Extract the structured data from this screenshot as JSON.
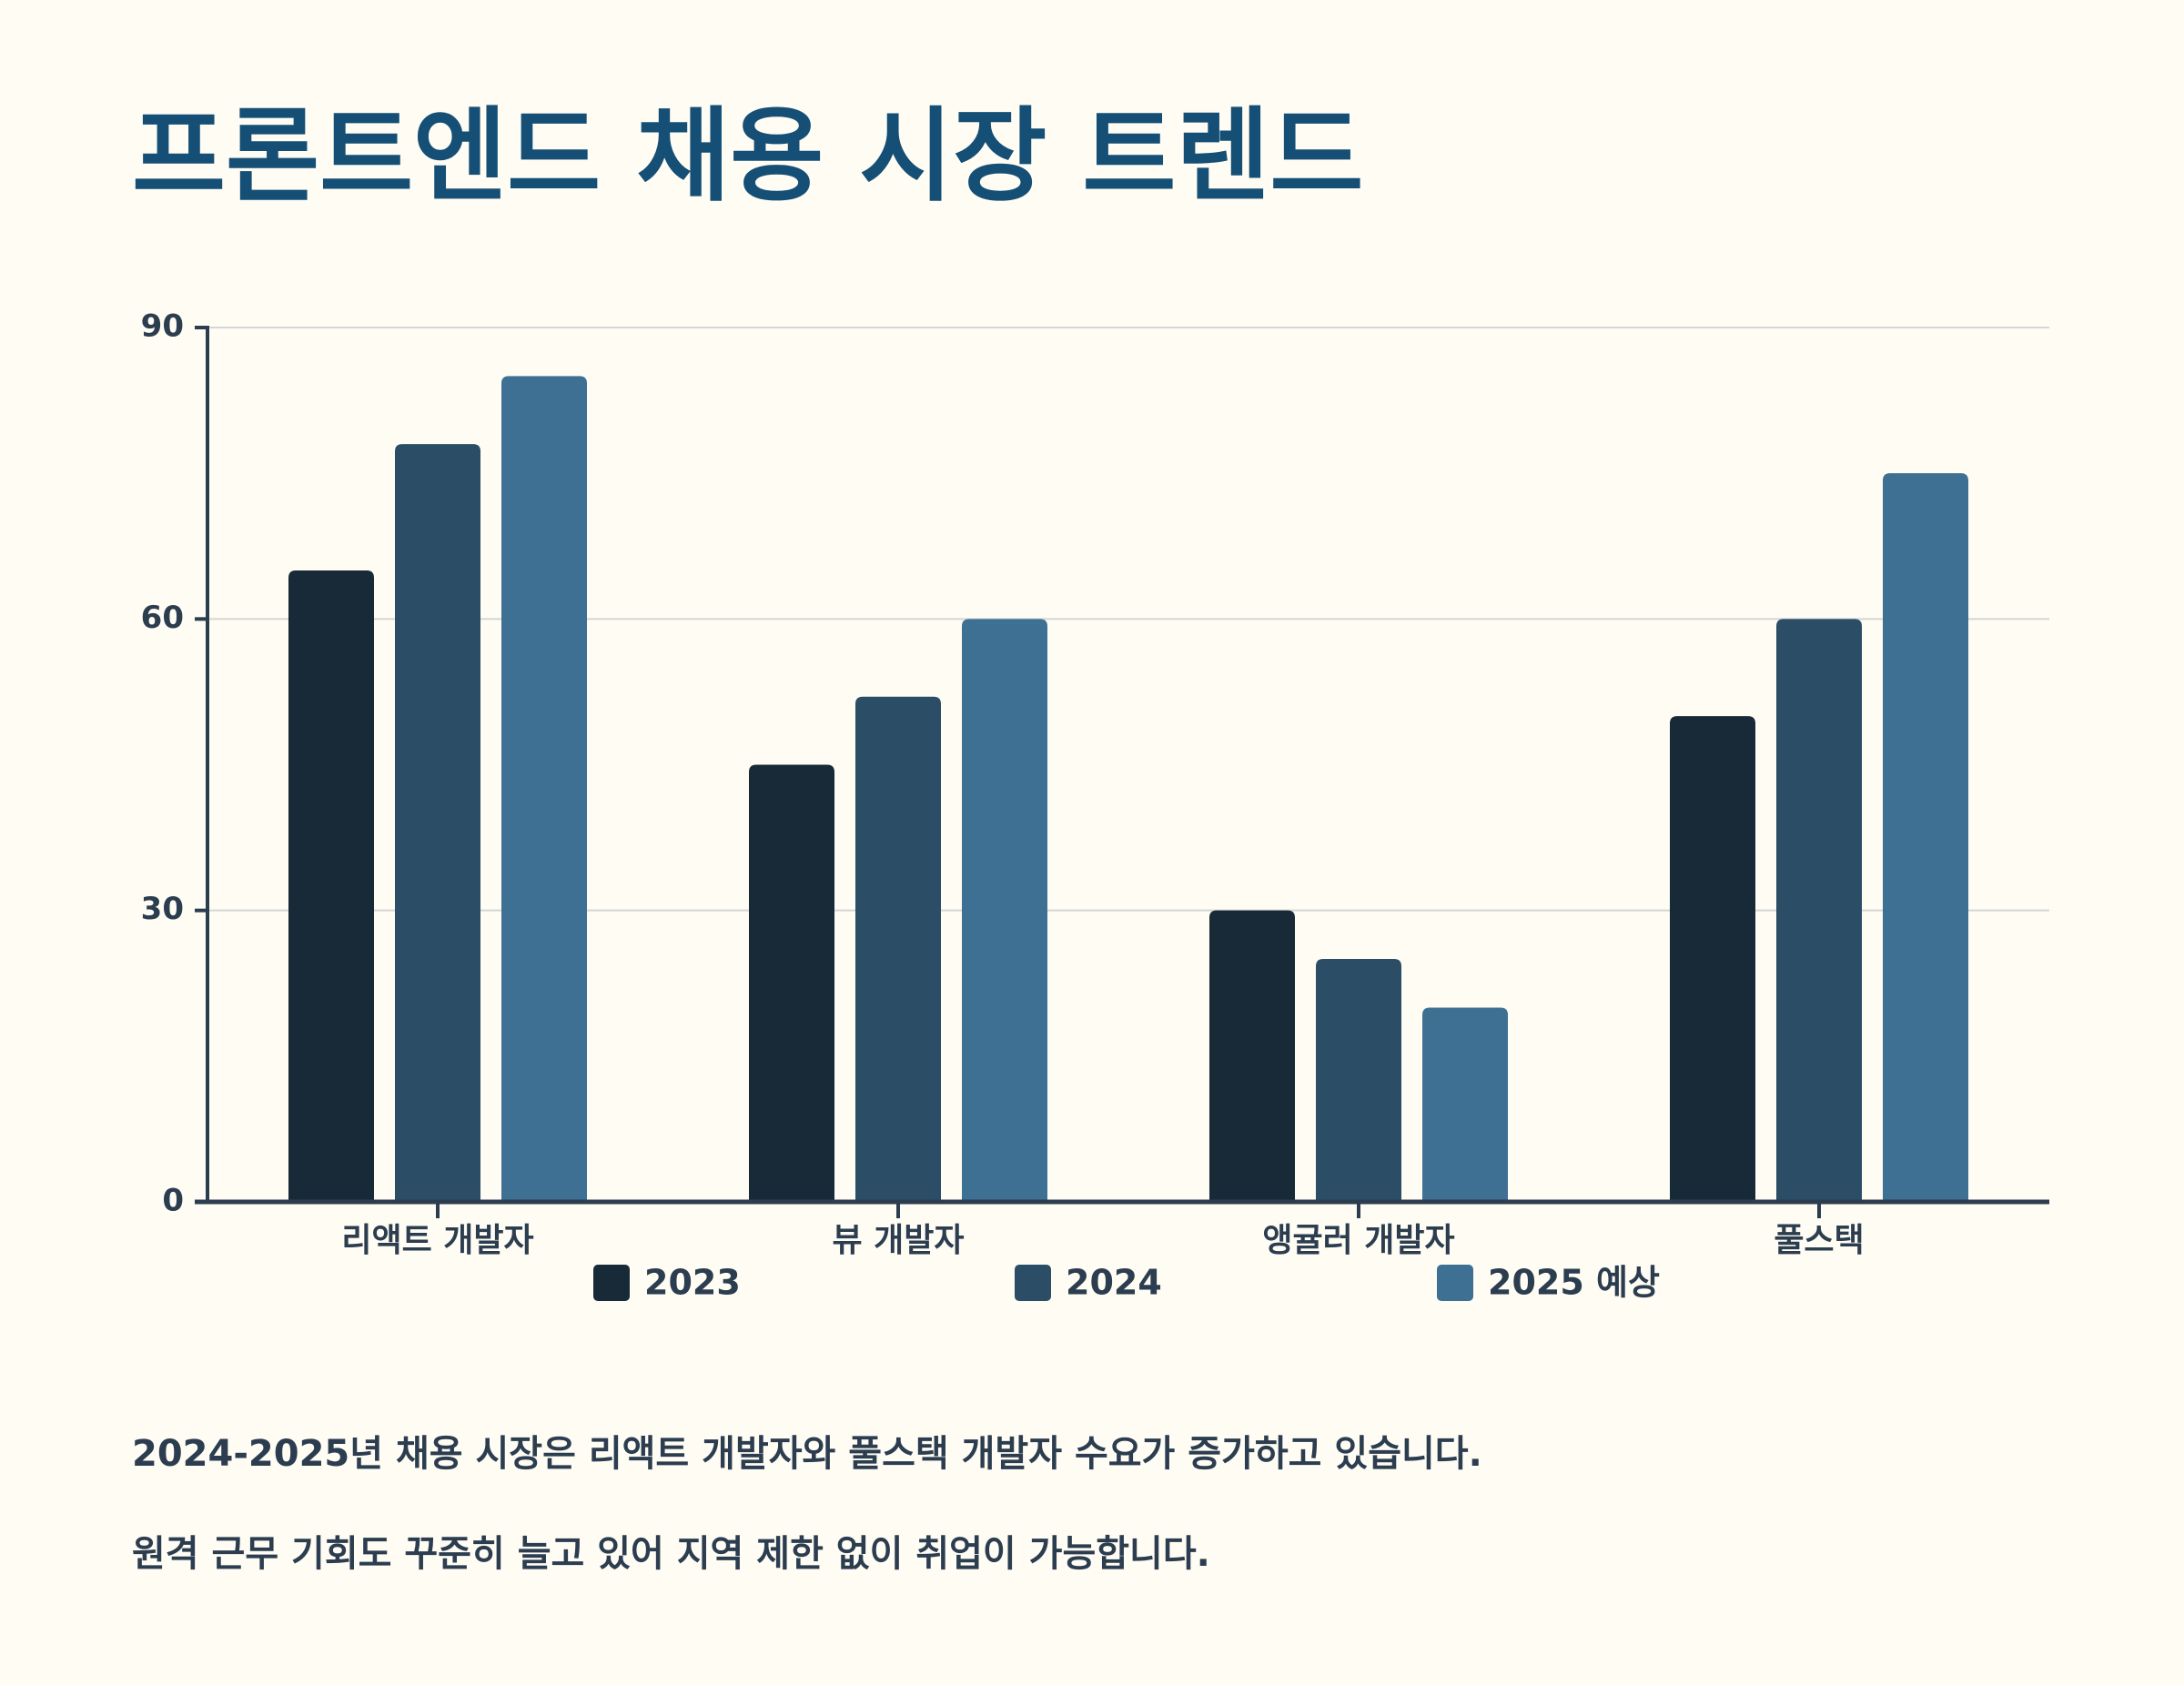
{
  "title": "프론트엔드 채용 시장 트렌드",
  "summary": [
    "2024-2025년 채용 시장은 리액트 개발자와 풀스택 개발자 수요가 증가하고 있습니다.",
    "원격 근무 기회도 꾸준히 늘고 있어 지역 제한 없이 취업이 가능합니다."
  ],
  "colors": {
    "background": "#fffcf4",
    "title": "#154f75",
    "text": "#2b3d4f",
    "axis": "#2b3d4f",
    "grid": "#d3d6d4"
  },
  "chart_data": {
    "type": "bar",
    "title": "",
    "xlabel": "",
    "ylabel": "",
    "categories": [
      "리액트 개발자",
      "뷰 개발자",
      "앵귤러 개발자",
      "풀스택"
    ],
    "series": [
      {
        "name": "2023",
        "values": [
          65,
          45,
          30,
          50
        ],
        "color": "#182a37"
      },
      {
        "name": "2024",
        "values": [
          78,
          52,
          25,
          60
        ],
        "color": "#2b4d65"
      },
      {
        "name": "2025 예상",
        "values": [
          85,
          60,
          20,
          75
        ],
        "color": "#3d7092"
      }
    ],
    "ylim": [
      0,
      90
    ],
    "yticks": [
      0,
      30,
      60,
      90
    ],
    "grid": true,
    "legend": "bottom"
  }
}
